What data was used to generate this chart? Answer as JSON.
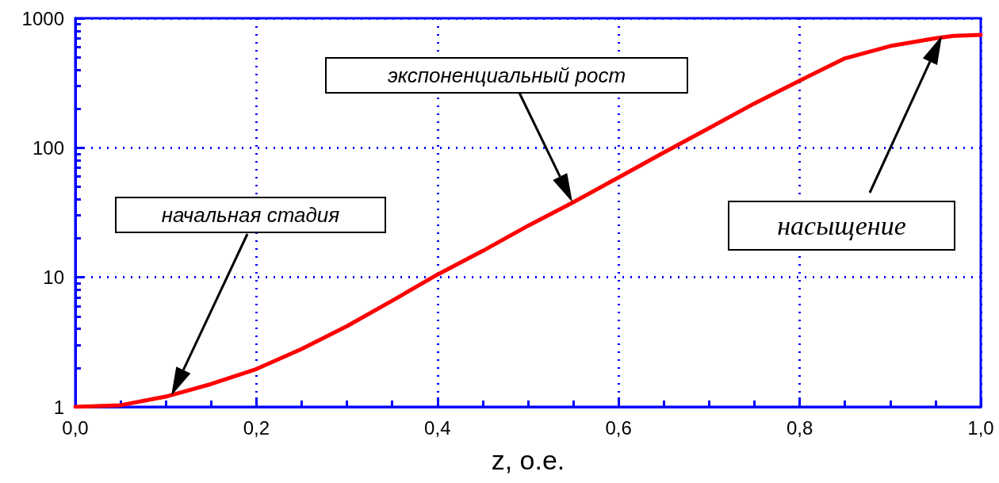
{
  "chart_data": {
    "type": "line",
    "xlabel": "z, о.е.",
    "x": [
      0,
      0.05,
      0.1,
      0.15,
      0.2,
      0.25,
      0.3,
      0.35,
      0.4,
      0.45,
      0.5,
      0.55,
      0.6,
      0.65,
      0.7,
      0.75,
      0.8,
      0.85,
      0.9,
      0.95,
      0.97,
      1.0
    ],
    "series": [
      {
        "color": "#ff0000",
        "values": [
          1,
          1.03,
          1.2,
          1.5,
          1.96,
          2.8,
          4.2,
          6.6,
          10.5,
          16,
          25,
          38,
          59,
          92,
          142,
          220,
          330,
          490,
          610,
          700,
          730,
          745
        ]
      }
    ],
    "xlim": [
      0,
      1
    ],
    "xticks": [
      {
        "value": 0,
        "label": "0,0"
      },
      {
        "value": 0.2,
        "label": "0,2"
      },
      {
        "value": 0.4,
        "label": "0,4"
      },
      {
        "value": 0.6,
        "label": "0,6"
      },
      {
        "value": 0.8,
        "label": "0,8"
      },
      {
        "value": 1,
        "label": "1,0"
      }
    ],
    "ylim": [
      1,
      1000
    ],
    "yticks": [
      1,
      10,
      100,
      1000
    ],
    "log": "y",
    "grid": true,
    "marker": "none",
    "line_style": "solid",
    "annotations": [
      "начальная стадия",
      "экспоненциальный рост",
      "насыщение"
    ]
  }
}
